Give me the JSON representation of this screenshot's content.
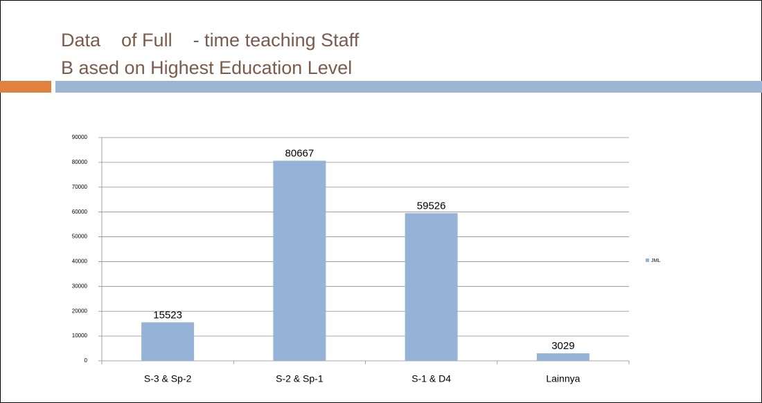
{
  "chart_data": {
    "type": "bar",
    "title": [
      "Data    of Full    - time teaching Staff",
      "B ased on Highest Education Level"
    ],
    "categories": [
      "S-3 & Sp-2",
      "S-2 & Sp-1",
      "S-1 & D4",
      "Lainnya"
    ],
    "series": [
      {
        "name": "JML",
        "color": "#95b3d7",
        "values": [
          15523,
          80667,
          59526,
          3029
        ]
      }
    ],
    "ylim": [
      0,
      90000
    ],
    "yticks": [
      0,
      10000,
      20000,
      30000,
      40000,
      50000,
      60000,
      70000,
      80000,
      90000
    ],
    "grid": true,
    "legend": "right"
  }
}
